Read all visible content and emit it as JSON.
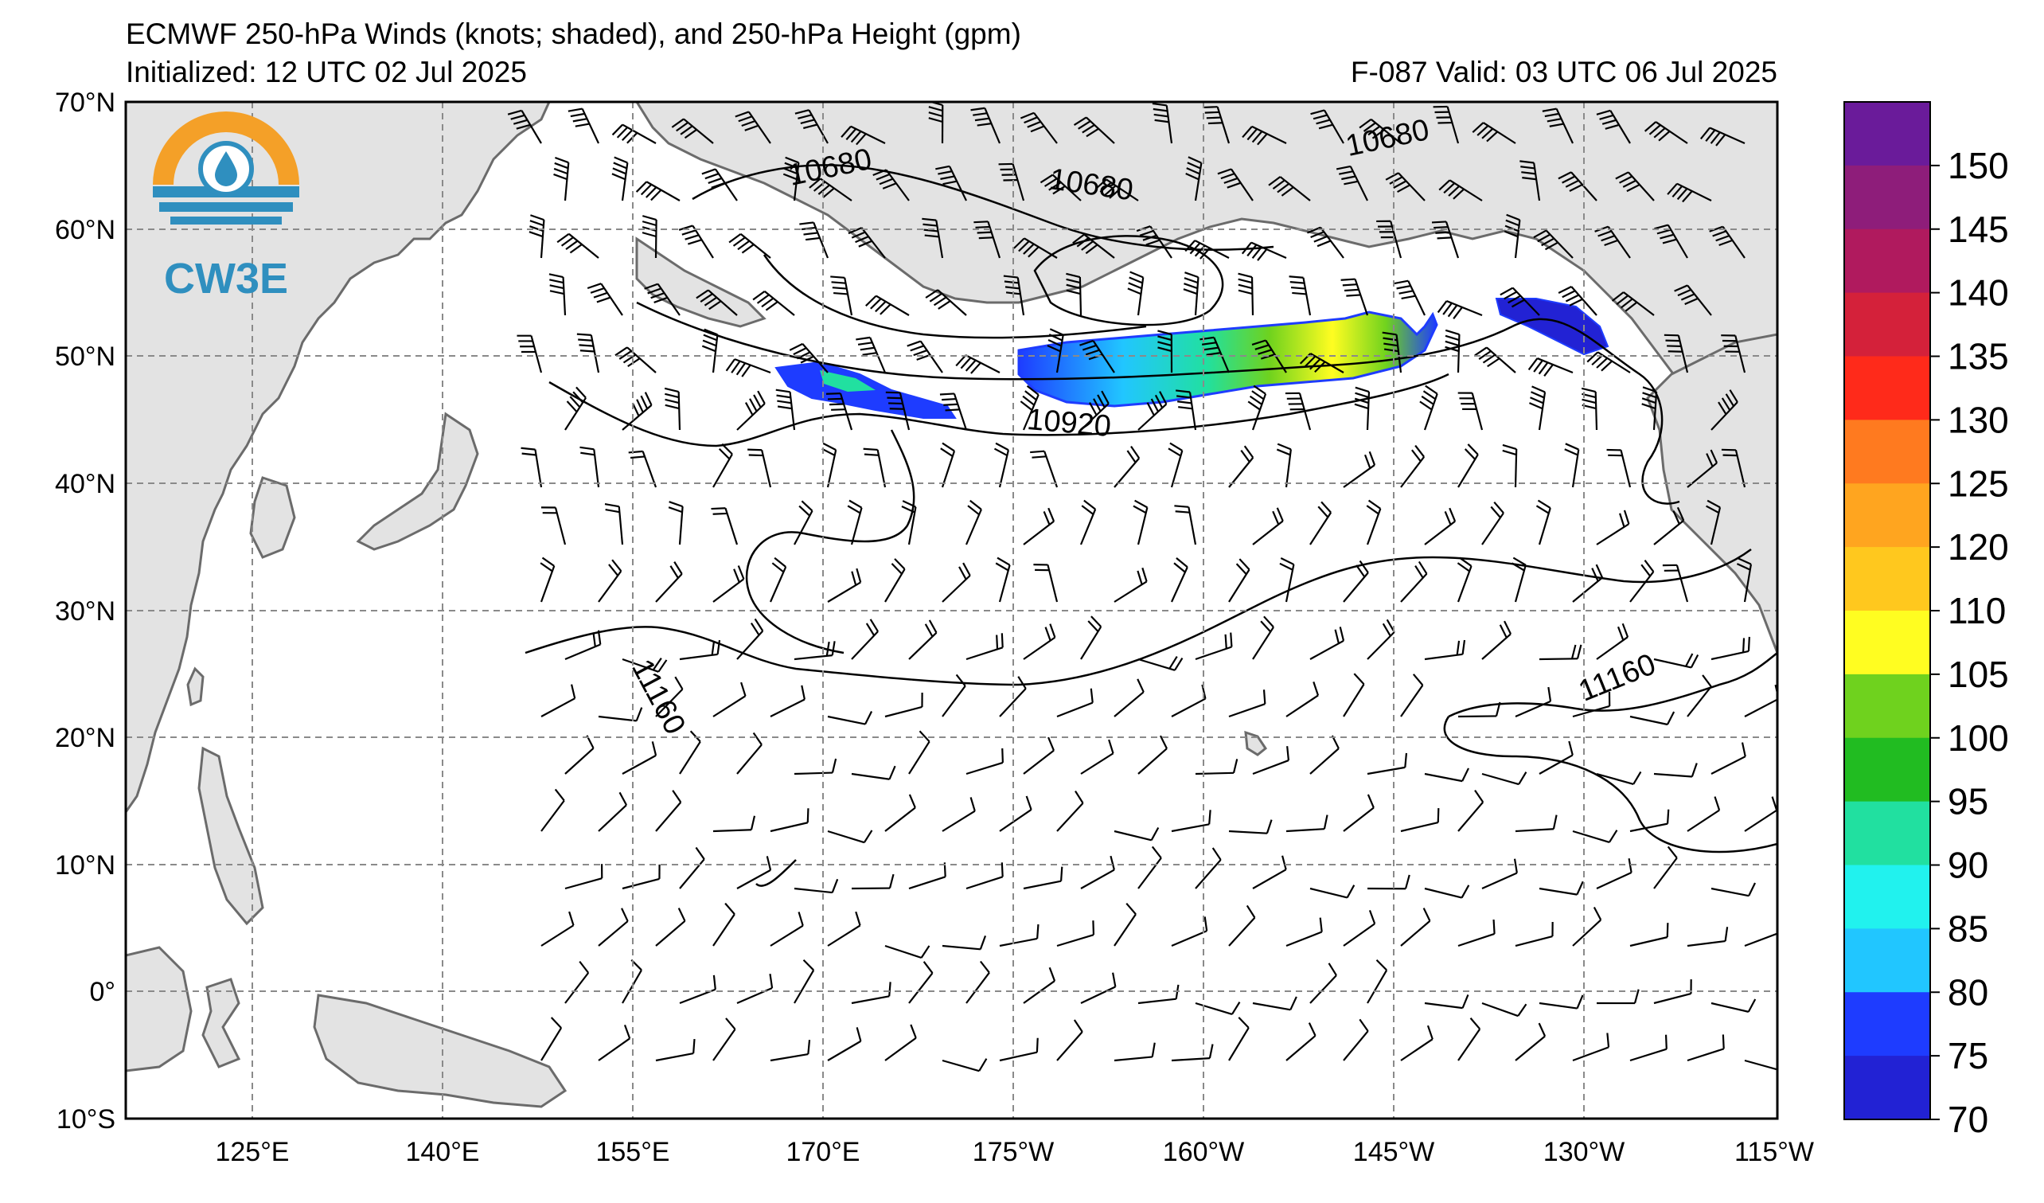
{
  "header": {
    "title": "ECMWF 250-hPa Winds (knots; shaded), and 250-hPa Height (gpm)",
    "initialized": "Initialized: 12 UTC 02 Jul 2025",
    "valid": "F-087  Valid: 03 UTC 06 Jul 2025"
  },
  "logo": {
    "text": "CW3E",
    "icon": "water-drop-icon"
  },
  "axes": {
    "lat_labels": [
      "70°N",
      "60°N",
      "50°N",
      "40°N",
      "30°N",
      "20°N",
      "10°N",
      "0°",
      "10°S"
    ],
    "lon_labels": [
      "125°E",
      "140°E",
      "155°E",
      "170°E",
      "175°W",
      "160°W",
      "145°W",
      "130°W",
      "115°W"
    ]
  },
  "contour_labels": [
    {
      "text": "10680"
    },
    {
      "text": "10680"
    },
    {
      "text": "10680"
    },
    {
      "text": "10920"
    },
    {
      "text": "11160"
    },
    {
      "text": "11160"
    }
  ],
  "colorbar": {
    "labels": [
      "150",
      "145",
      "140",
      "135",
      "130",
      "125",
      "120",
      "110",
      "105",
      "100",
      "95",
      "90",
      "85",
      "80",
      "75",
      "70"
    ],
    "colors": [
      "#6a1b9a",
      "#8e1d7a",
      "#b01a5e",
      "#d4213a",
      "#ff2a1a",
      "#ff7a1f",
      "#ffa51f",
      "#ffc81e",
      "#fffd21",
      "#6fd21e",
      "#21bc21",
      "#21e0a0",
      "#21f2ee",
      "#21c6ff",
      "#1e3cff",
      "#2222d4"
    ]
  },
  "colors": {
    "land": "#e3e3e3",
    "coast": "#6b6b6b",
    "grid": "#8a8a8a"
  }
}
